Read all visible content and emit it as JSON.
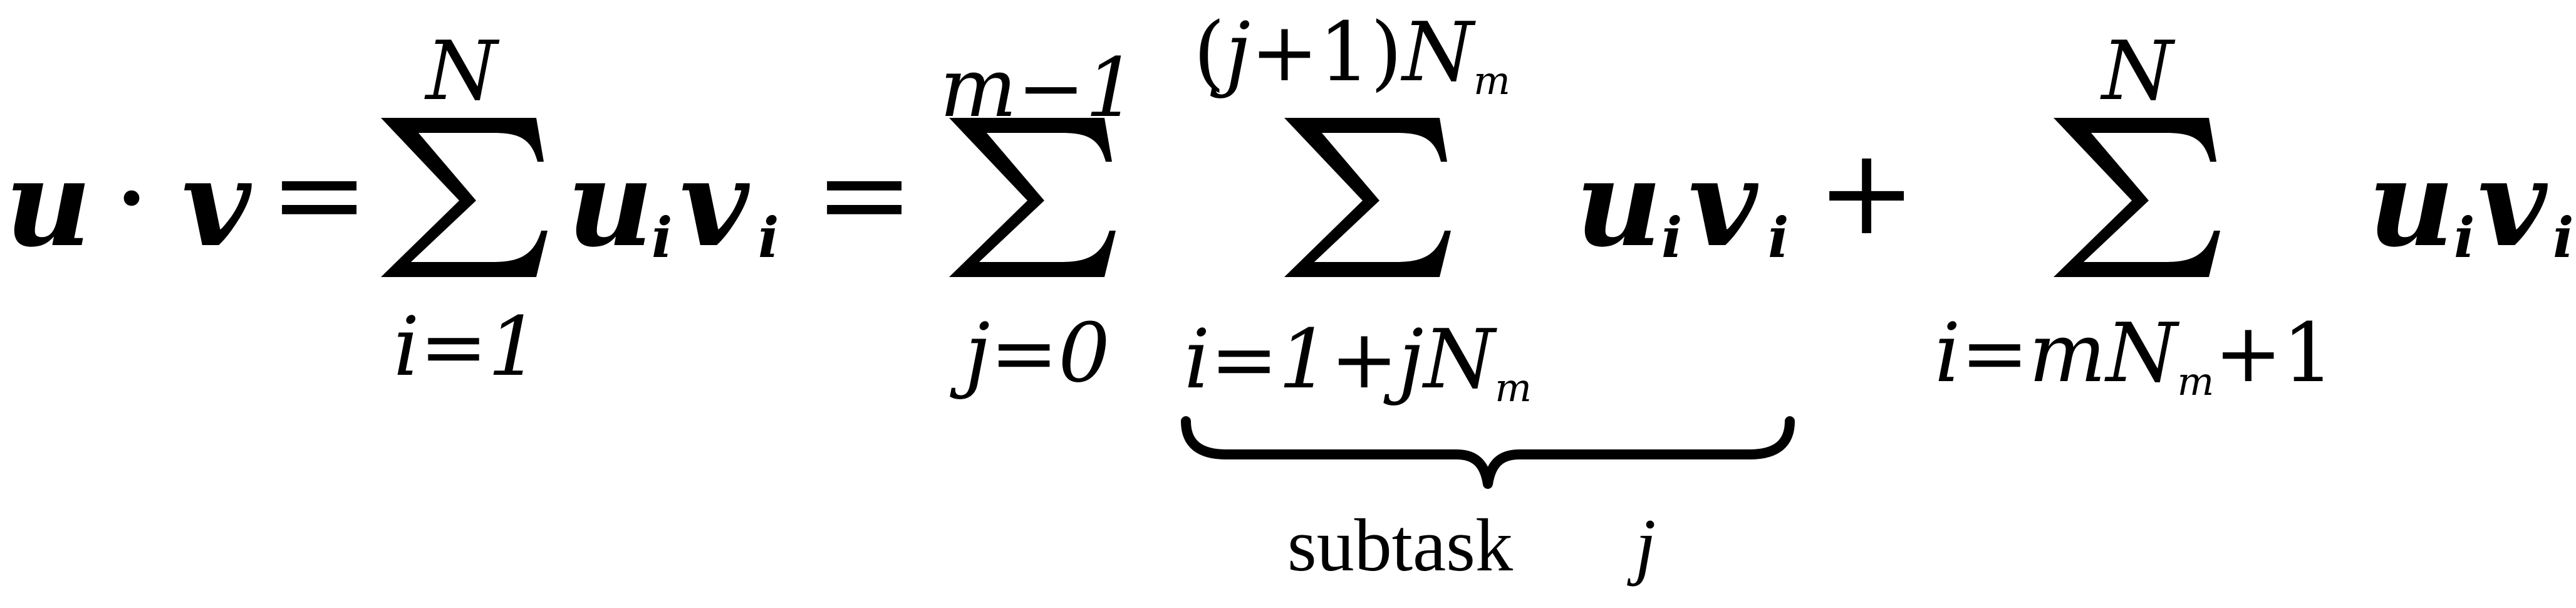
{
  "equation": {
    "lhs": {
      "u": "u",
      "dot": "·",
      "v": "v"
    },
    "eq1": "=",
    "eq2": "=",
    "plus": "+",
    "sum1": {
      "upper": "N",
      "lower": "i=1",
      "term": {
        "u": "u",
        "i1": "i",
        "v": "v",
        "i2": "i"
      }
    },
    "sum2": {
      "upper": "m−1",
      "lower": "j=0"
    },
    "sum3": {
      "upper": {
        "open": "(",
        "j": "j",
        "plus1": "+1)",
        "N": "N",
        "m": "m"
      },
      "lower": {
        "prefix": "i=1+",
        "j": "j",
        "N": "N",
        "m": "m"
      },
      "term": {
        "u": "u",
        "i1": "i",
        "v": "v",
        "i2": "i"
      }
    },
    "sum4": {
      "upper": "N",
      "lower": {
        "prefix": "i=",
        "m": "m",
        "N": "N",
        "sub_m": "m",
        "suffix": "+1"
      },
      "term": {
        "u": "u",
        "i1": "i",
        "v": "v",
        "i2": "i"
      }
    },
    "brace_label": {
      "text": "subtask",
      "j": "j"
    }
  }
}
